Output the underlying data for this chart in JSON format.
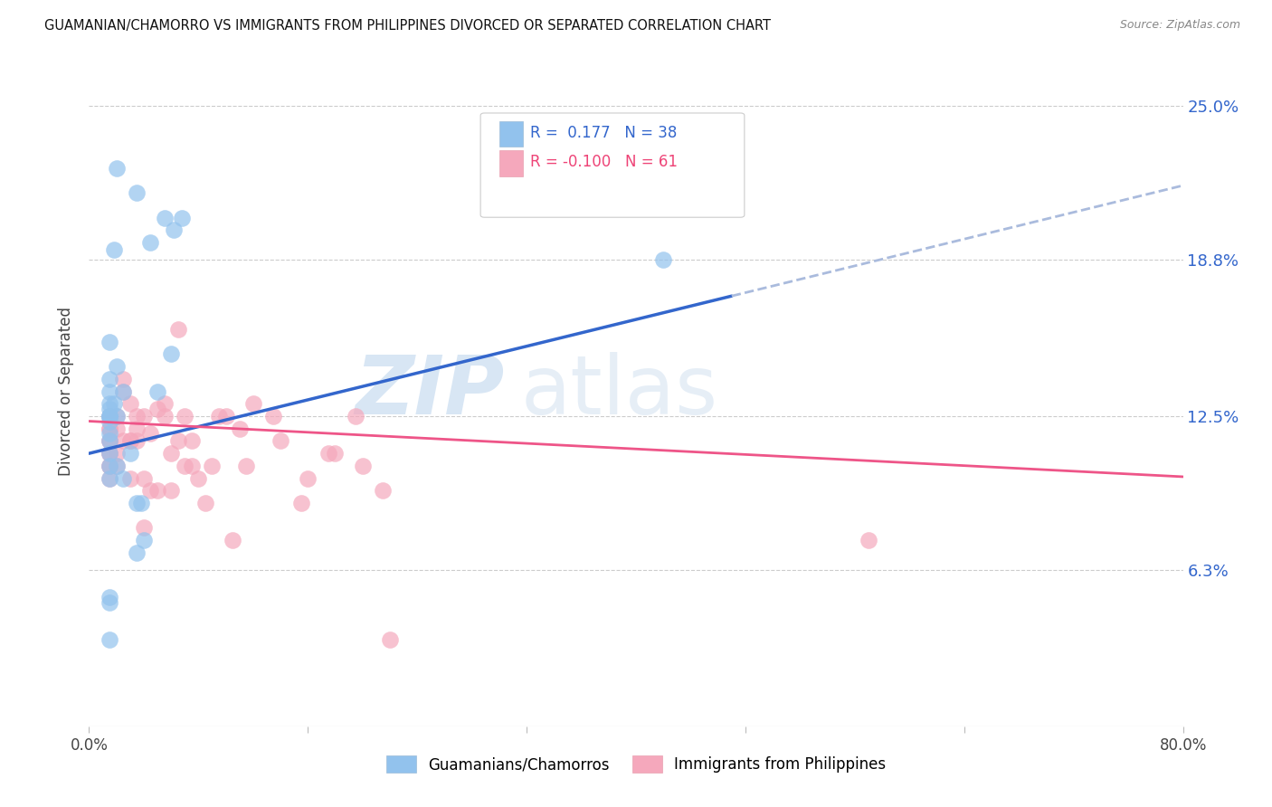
{
  "title": "GUAMANIAN/CHAMORRO VS IMMIGRANTS FROM PHILIPPINES DIVORCED OR SEPARATED CORRELATION CHART",
  "source": "Source: ZipAtlas.com",
  "ylabel": "Divorced or Separated",
  "ytick_labels": [
    "6.3%",
    "12.5%",
    "18.8%",
    "25.0%"
  ],
  "ytick_values": [
    6.3,
    12.5,
    18.8,
    25.0
  ],
  "legend_label1": "Guamanians/Chamorros",
  "legend_label2": "Immigrants from Philippines",
  "R1": "0.177",
  "N1": "38",
  "R2": "-0.100",
  "N2": "61",
  "color_blue": "#92C2ED",
  "color_pink": "#F5A8BC",
  "line_blue": "#3366CC",
  "line_pink": "#EE5588",
  "line_dashed_color": "#AABBDD",
  "blue_x": [
    2.0,
    3.5,
    5.5,
    6.2,
    6.8,
    4.5,
    1.8,
    1.5,
    2.0,
    1.5,
    1.5,
    2.5,
    1.5,
    1.5,
    1.5,
    1.8,
    1.5,
    1.5,
    1.5,
    2.0,
    1.5,
    1.5,
    1.5,
    2.0,
    1.5,
    1.5,
    2.5,
    1.5,
    3.5,
    3.8,
    3.0,
    1.5,
    1.5,
    4.0,
    3.5,
    42.0,
    6.0,
    5.0
  ],
  "blue_y": [
    22.5,
    21.5,
    20.5,
    20.0,
    20.5,
    19.5,
    19.2,
    15.5,
    14.5,
    14.0,
    13.5,
    13.5,
    13.0,
    12.8,
    12.5,
    13.0,
    12.5,
    12.5,
    12.3,
    12.5,
    11.8,
    11.5,
    11.0,
    10.5,
    10.5,
    10.0,
    10.0,
    3.5,
    9.0,
    9.0,
    11.0,
    5.0,
    5.2,
    7.5,
    7.0,
    18.8,
    15.0,
    13.5
  ],
  "pink_x": [
    1.5,
    1.5,
    1.5,
    1.5,
    1.5,
    1.5,
    1.5,
    1.5,
    1.5,
    1.5,
    2.0,
    2.0,
    2.5,
    2.5,
    3.0,
    3.0,
    3.5,
    3.5,
    4.0,
    4.5,
    5.0,
    5.5,
    6.0,
    6.5,
    7.0,
    7.5,
    8.0,
    9.0,
    10.0,
    11.0,
    12.0,
    14.0,
    16.0,
    18.0,
    20.0,
    22.0,
    2.0,
    2.5,
    3.0,
    4.0,
    5.0,
    6.0,
    7.0,
    8.5,
    10.5,
    57.0,
    3.5,
    4.5,
    5.5,
    6.5,
    7.5,
    9.5,
    11.5,
    13.5,
    15.5,
    17.5,
    19.5,
    21.5,
    2.0,
    3.0,
    4.0
  ],
  "pink_y": [
    12.5,
    12.0,
    12.0,
    11.5,
    11.5,
    11.0,
    11.0,
    10.5,
    10.5,
    10.0,
    12.5,
    12.0,
    13.5,
    14.0,
    13.0,
    11.5,
    12.5,
    12.0,
    12.5,
    11.8,
    12.8,
    13.0,
    11.0,
    16.0,
    12.5,
    11.5,
    10.0,
    10.5,
    12.5,
    12.0,
    13.0,
    11.5,
    10.0,
    11.0,
    10.5,
    3.5,
    10.5,
    11.5,
    10.0,
    10.0,
    9.5,
    9.5,
    10.5,
    9.0,
    7.5,
    7.5,
    11.5,
    9.5,
    12.5,
    11.5,
    10.5,
    12.5,
    10.5,
    12.5,
    9.0,
    11.0,
    12.5,
    9.5,
    11.0,
    11.5,
    8.0
  ],
  "xmin": 0.0,
  "xmax": 80.0,
  "ymin": 0.0,
  "ymax": 27.0,
  "background_color": "#FFFFFF",
  "blue_line_intercept": 11.0,
  "blue_line_slope": 0.135,
  "pink_line_intercept": 12.3,
  "pink_line_slope": -0.028,
  "blue_solid_end": 47.0,
  "xtick_positions": [
    0,
    16,
    32,
    48,
    64,
    80
  ]
}
